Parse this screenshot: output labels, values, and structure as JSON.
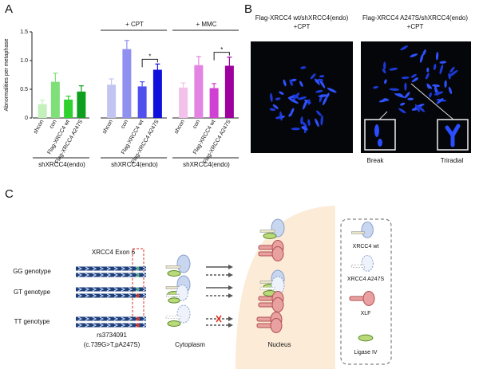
{
  "panel_labels": [
    "A",
    "B",
    "C"
  ],
  "chart_data": [
    {
      "type": "bar",
      "y_label": "Abnormalities per metaphase",
      "categories": [
        "shcon",
        "con",
        "Flag-XRCC4 wt",
        "Flag-XRCC4 A247S"
      ],
      "values": [
        0.24,
        0.63,
        0.32,
        0.46
      ],
      "errors": [
        0.07,
        0.15,
        0.06,
        0.1
      ],
      "colors": [
        "#c4f0bc",
        "#7fe07a",
        "#2ed12e",
        "#0f9f1f"
      ],
      "ylim": [
        0,
        1.5
      ],
      "yticks": [
        0,
        0.5,
        {
          "value": 1,
          "label": "1.0"
        },
        1.5
      ],
      "group_label": "shXRCC4(endo)"
    },
    {
      "type": "bar",
      "title": "+ CPT",
      "categories": [
        "shcon",
        "con",
        "Flag-XRCC4 wt",
        "Flag-XRCC4 A247S"
      ],
      "values": [
        0.58,
        1.2,
        0.55,
        0.84
      ],
      "errors": [
        0.1,
        0.15,
        0.08,
        0.1
      ],
      "colors": [
        "#c2c4f2",
        "#9090f0",
        "#5050ef",
        "#1010dd"
      ],
      "ylim": [
        0,
        1.5
      ],
      "significance_label": "*",
      "group_label": "shXRCC4(endo)"
    },
    {
      "type": "bar",
      "title": "+ MMC",
      "categories": [
        "shcon",
        "con",
        "Flag-XRCC4 wt",
        "Flag-XRCC4 A247S"
      ],
      "values": [
        0.53,
        0.92,
        0.52,
        0.91
      ],
      "errors": [
        0.08,
        0.15,
        0.08,
        0.15
      ],
      "colors": [
        "#f2c2ea",
        "#e484e2",
        "#d040d2",
        "#9e009e"
      ],
      "ylim": [
        0,
        1.5
      ],
      "significance_label": "*",
      "group_label": "shXRCC4(endo)"
    }
  ],
  "panel_b": {
    "images": [
      {
        "title": "Flag-XRCC4 wt/shXRCC4(endo)",
        "subtitle": "+CPT"
      },
      {
        "title": "Flag-XRCC4 A247S/shXRCC4(endo)",
        "subtitle": "+CPT"
      }
    ],
    "insets": [
      "Break",
      "Triradial"
    ]
  },
  "panel_c": {
    "exon": "XRCC4 Exon 6",
    "genotypes": [
      "GG genotype",
      "GT genotype",
      "TT genotype"
    ],
    "snp": "rs3734091",
    "snp_detail": "(c.739G>T,pA247S)",
    "compartments": [
      "Cytoplasm",
      "Nucleus"
    ],
    "legend": [
      "XRCC4 wt",
      "XRCC4 A247S",
      "XLF",
      "Ligase IV"
    ]
  }
}
